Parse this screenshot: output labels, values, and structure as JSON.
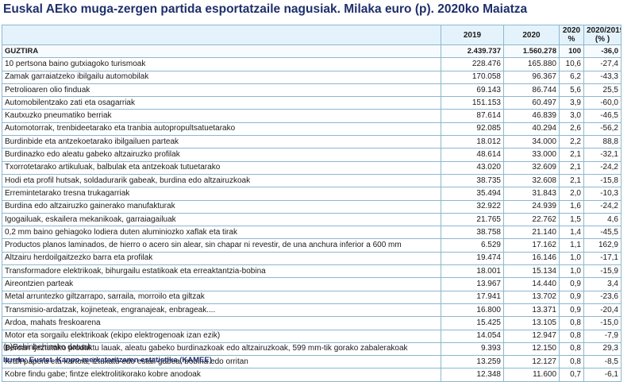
{
  "title": "Euskal AEko muga-zergen partida esportatzaile nagusiak. Milaka euro (p). 2020ko Maiatza",
  "headers": {
    "label": "",
    "c2019": "2019",
    "c2020": "2020",
    "share_line1": "2020",
    "share_line2": "%",
    "change_line1": "2020/2019",
    "change_line2": "(% )"
  },
  "total": {
    "label": "GUZTIRA",
    "v2019": "2.439.737",
    "v2020": "1.560.278",
    "pct": "100",
    "change": "-36,0"
  },
  "rows": [
    {
      "label": "10 pertsona baino gutxiagoko turismoak",
      "v2019": "228.476",
      "v2020": "165.880",
      "pct": "10,6",
      "change": "-27,4"
    },
    {
      "label": "Zamak garraiatzeko ibilgailu automobilak",
      "v2019": "170.058",
      "v2020": "96.367",
      "pct": "6,2",
      "change": "-43,3"
    },
    {
      "label": "Petrolioaren olio finduak",
      "v2019": "69.143",
      "v2020": "86.744",
      "pct": "5,6",
      "change": "25,5"
    },
    {
      "label": "Automobilentzako zati eta osagarriak",
      "v2019": "151.153",
      "v2020": "60.497",
      "pct": "3,9",
      "change": "-60,0"
    },
    {
      "label": "Kautxuzko pneumatiko berriak",
      "v2019": "87.614",
      "v2020": "46.839",
      "pct": "3,0",
      "change": "-46,5"
    },
    {
      "label": "Automotorrak, trenbideetarako eta tranbia autopropultsatuetarako",
      "v2019": "92.085",
      "v2020": "40.294",
      "pct": "2,6",
      "change": "-56,2"
    },
    {
      "label": "Burdinbide eta antzekoetarako ibilgailuen parteak",
      "v2019": "18.012",
      "v2020": "34.000",
      "pct": "2,2",
      "change": "88,8"
    },
    {
      "label": "Burdinazko edo aleatu gabeko altzairuzko profilak",
      "v2019": "48.614",
      "v2020": "33.000",
      "pct": "2,1",
      "change": "-32,1"
    },
    {
      "label": "Txorrotetarako artikuluak, balbulak eta antzekoak tutuetarako",
      "v2019": "43.020",
      "v2020": "32.609",
      "pct": "2,1",
      "change": "-24,2"
    },
    {
      "label": "Hodi eta profil hutsak, soldadurarik gabeak, burdina edo altzairuzkoak",
      "v2019": "38.735",
      "v2020": "32.608",
      "pct": "2,1",
      "change": "-15,8"
    },
    {
      "label": "Erremintetarako tresna trukagarriak",
      "v2019": "35.494",
      "v2020": "31.843",
      "pct": "2,0",
      "change": "-10,3"
    },
    {
      "label": "Burdina edo altzairuzko gainerako manufakturak",
      "v2019": "32.922",
      "v2020": "24.939",
      "pct": "1,6",
      "change": "-24,2"
    },
    {
      "label": "Igogailuak, eskailera mekanikoak, garraiagailuak",
      "v2019": "21.765",
      "v2020": "22.762",
      "pct": "1,5",
      "change": "4,6"
    },
    {
      "label": "0,2 mm baino gehiagoko lodiera duten aluminiozko xaflak eta tirak",
      "v2019": "38.758",
      "v2020": "21.140",
      "pct": "1,4",
      "change": "-45,5"
    },
    {
      "label": "Productos planos laminados, de hierro o acero sin alear, sin chapar ni revestir, de una anchura inferior a  600 mm",
      "v2019": "6.529",
      "v2020": "17.162",
      "pct": "1,1",
      "change": "162,9"
    },
    {
      "label": "Altzairu herdoilgaitzezko barra eta profilak",
      "v2019": "19.474",
      "v2020": "16.146",
      "pct": "1,0",
      "change": "-17,1"
    },
    {
      "label": "Transformadore elektrikoak, bihurgailu estatikoak eta erreaktantzia-bobina",
      "v2019": "18.001",
      "v2020": "15.134",
      "pct": "1,0",
      "change": "-15,9"
    },
    {
      "label": "Aireontzien parteak",
      "v2019": "13.967",
      "v2020": "14.440",
      "pct": "0,9",
      "change": "3,4"
    },
    {
      "label": "Metal arruntezko giltzarrapo, sarraila, morroilo eta giltzak",
      "v2019": "17.941",
      "v2020": "13.702",
      "pct": "0,9",
      "change": "-23,6"
    },
    {
      "label": "Transmisio-ardatzak, kojineteak, engranajeak, enbrageak....",
      "v2019": "16.800",
      "v2020": "13.371",
      "pct": "0,9",
      "change": "-20,4"
    },
    {
      "label": "Ardoa, mahats freskoarena",
      "v2019": "15.425",
      "v2020": "13.105",
      "pct": "0,8",
      "change": "-15,0"
    },
    {
      "label": "Motor eta sorgailu elektrikoak (ekipo elektrogenoak izan ezik)",
      "v2019": "14.054",
      "v2020": "12.947",
      "pct": "0,8",
      "change": "-7,9"
    },
    {
      "label": "Beroan ijeztutako produktu lauak, aleatu gabeko burdinazkoak edo altzairuzkoak, 599 mm-tik gorako zabalerakoak",
      "v2019": "9.393",
      "v2020": "12.150",
      "pct": "0,8",
      "change": "29,3"
    },
    {
      "label": "Kraft papera eta kartoia, iztukatu edo estali gabea, bobina edo orritan",
      "v2019": "13.259",
      "v2020": "12.127",
      "pct": "0,8",
      "change": "-8,5"
    },
    {
      "label": "Kobre findu gabe; fintze elektrolitikorako kobre anodoak",
      "v2019": "12.348",
      "v2020": "11.600",
      "pct": "0,7",
      "change": "-6,1"
    }
  ],
  "note": "(p)Behinbehineko datuak",
  "source": "Iturria: Eustat. Kanpo-merkataritzaren estatistika (KAMEE)",
  "colors": {
    "title": "#1f2f6b",
    "border": "#8db7cf",
    "header_bg": "#e4f3fb"
  }
}
